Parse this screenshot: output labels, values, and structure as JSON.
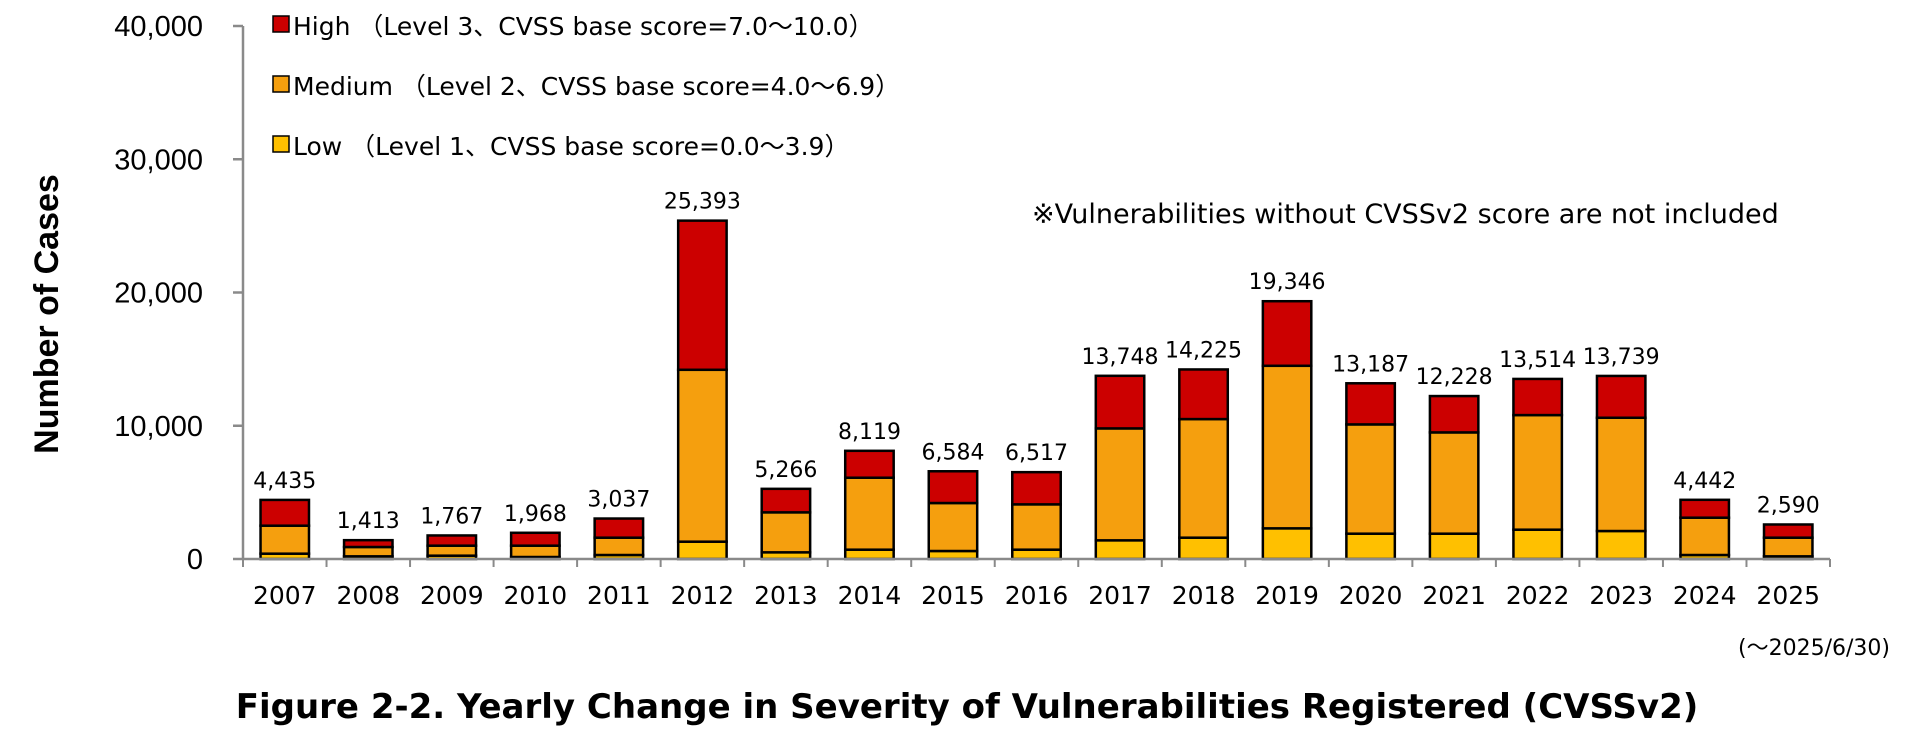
{
  "chart_data": {
    "type": "bar",
    "stacked": true,
    "title": "Figure 2-2. Yearly Change in Severity of Vulnerabilities Registered (CVSSv2)",
    "ylabel": "Number of Cases",
    "xlabel": "",
    "ylim": [
      0,
      40000
    ],
    "yticks": [
      0,
      10000,
      20000,
      30000,
      40000
    ],
    "ytick_labels": [
      "0",
      "10,000",
      "20,000",
      "30,000",
      "40,000"
    ],
    "grid": false,
    "legend_position": "top-left",
    "categories": [
      "2007",
      "2008",
      "2009",
      "2010",
      "2011",
      "2012",
      "2013",
      "2014",
      "2015",
      "2016",
      "2017",
      "2018",
      "2019",
      "2020",
      "2021",
      "2022",
      "2023",
      "2024",
      "2025"
    ],
    "series": [
      {
        "name": "Low（Level 1、CVSS base score=0.0～3.9）",
        "color": "#FFC000",
        "values": [
          400,
          200,
          250,
          150,
          300,
          1300,
          500,
          700,
          600,
          700,
          1400,
          1600,
          2300,
          1900,
          1900,
          2200,
          2100,
          300,
          200
        ]
      },
      {
        "name": "Medium（Level 2、CVSS base score=4.0～6.9）",
        "color": "#F59F0E",
        "values": [
          2100,
          700,
          750,
          850,
          1300,
          12900,
          3000,
          5400,
          3600,
          3400,
          8400,
          8900,
          12200,
          8200,
          7600,
          8600,
          8500,
          2800,
          1400
        ]
      },
      {
        "name": "High（Level 3、CVSS base score=7.0～10.0）",
        "color": "#CC0000",
        "values": [
          1935,
          513,
          767,
          968,
          1437,
          11193,
          1766,
          2019,
          2384,
          2417,
          3948,
          3725,
          4846,
          3087,
          2728,
          2714,
          3139,
          1342,
          990
        ]
      }
    ],
    "legend_labels": [
      "High （Level 3、CVSS base score=7.0～10.0）",
      "Medium （Level 2、CVSS base score=4.0～6.9）",
      "Low （Level 1、CVSS base score=0.0～3.9）"
    ],
    "totals": [
      4435,
      1413,
      1767,
      1968,
      3037,
      25393,
      5266,
      8119,
      6584,
      6517,
      13748,
      14225,
      19346,
      13187,
      12228,
      13514,
      13739,
      4442,
      2590
    ],
    "total_labels": [
      "4,435",
      "1,413",
      "1,767",
      "1,968",
      "3,037",
      "25,393",
      "5,266",
      "8,119",
      "6,584",
      "6,517",
      "13,748",
      "14,225",
      "19,346",
      "13,187",
      "12,228",
      "13,514",
      "13,739",
      "4,442",
      "2,590"
    ],
    "annotation": "※Vulnerabilities without CVSSv2 score are not included",
    "date_note": "(～2025/6/30)"
  }
}
